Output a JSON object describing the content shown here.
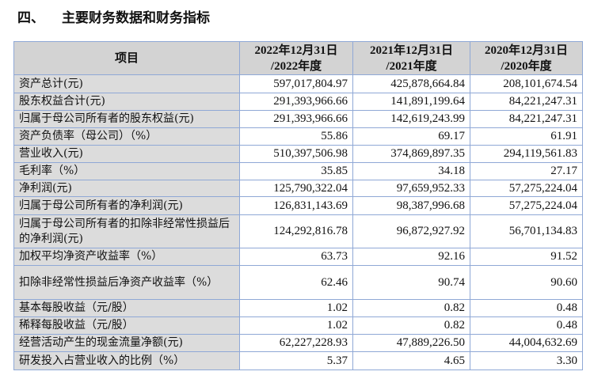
{
  "section": {
    "number": "四、",
    "title": "主要财务数据和财务指标"
  },
  "table": {
    "headers": [
      "项目",
      "2022年12月31日\n/2022年度",
      "2021年12月31日\n/2021年度",
      "2020年12月31日\n/2020年度"
    ],
    "rows": [
      {
        "label": "资产总计(元)",
        "values": [
          "597,017,804.97",
          "425,878,664.84",
          "208,101,674.54"
        ]
      },
      {
        "label": "股东权益合计(元)",
        "values": [
          "291,393,966.66",
          "141,891,199.64",
          "84,221,247.31"
        ]
      },
      {
        "label": "归属于母公司所有者的股东权益(元)",
        "values": [
          "291,393,966.66",
          "142,619,243.99",
          "84,221,247.31"
        ]
      },
      {
        "label": "资产负债率（母公司）（%）",
        "values": [
          "55.86",
          "69.17",
          "61.91"
        ]
      },
      {
        "label": "营业收入(元)",
        "values": [
          "510,397,506.98",
          "374,869,897.35",
          "294,119,561.83"
        ]
      },
      {
        "label": "毛利率（%）",
        "values": [
          "35.85",
          "34.18",
          "27.17"
        ]
      },
      {
        "label": "净利润(元)",
        "values": [
          "125,790,322.04",
          "97,659,952.33",
          "57,275,224.04"
        ]
      },
      {
        "label": "归属于母公司所有者的净利润(元)",
        "values": [
          "126,831,143.69",
          "98,387,996.68",
          "57,275,224.04"
        ]
      },
      {
        "label": "归属于母公司所有者的扣除非经常性损益后的净利润(元)",
        "values": [
          "124,292,816.78",
          "96,872,927.92",
          "56,701,134.83"
        ]
      },
      {
        "label": "加权平均净资产收益率（%）",
        "values": [
          "63.73",
          "92.16",
          "91.52"
        ]
      },
      {
        "label": "扣除非经常性损益后净资产收益率（%）",
        "values": [
          "62.46",
          "90.74",
          "90.60"
        ]
      },
      {
        "label": "基本每股收益（元/股）",
        "values": [
          "1.02",
          "0.82",
          "0.48"
        ]
      },
      {
        "label": "稀释每股收益（元/股）",
        "values": [
          "1.02",
          "0.82",
          "0.48"
        ]
      },
      {
        "label": "经营活动产生的现金流量净额(元)",
        "values": [
          "62,227,228.93",
          "47,889,226.50",
          "44,004,632.69"
        ]
      },
      {
        "label": "研发投入占营业收入的比例（%）",
        "values": [
          "5.37",
          "4.65",
          "3.30"
        ]
      }
    ]
  }
}
